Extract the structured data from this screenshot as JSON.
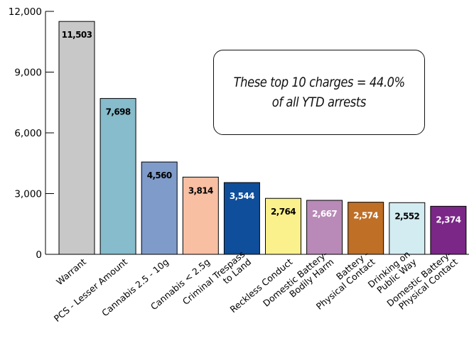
{
  "chart_data": {
    "type": "bar",
    "categories": [
      [
        "Warrant"
      ],
      [
        "PCS - Lesser Amount"
      ],
      [
        "Cannabis 2.5 - 10g"
      ],
      [
        "Cannabis < 2.5g"
      ],
      [
        "Criminal Trespass",
        "to Land"
      ],
      [
        "Reckless Conduct"
      ],
      [
        "Domestic Battery-",
        "Bodily Harm"
      ],
      [
        "Battery -",
        "Physical Contact"
      ],
      [
        "Drinking on",
        "Public Way"
      ],
      [
        "Domestic Battery-",
        "Physical Contact"
      ]
    ],
    "values": [
      11503,
      7698,
      4560,
      3814,
      3544,
      2764,
      2667,
      2574,
      2552,
      2374
    ],
    "value_labels": [
      "11,503",
      "7,698",
      "4,560",
      "3,814",
      "3,544",
      "2,764",
      "2,667",
      "2,574",
      "2,552",
      "2,374"
    ],
    "bar_colors": [
      "#c8c8c8",
      "#86bccb",
      "#7f9bc9",
      "#f8bfa3",
      "#0f4e9a",
      "#faf08c",
      "#b98ab8",
      "#bf6f26",
      "#d3ecf2",
      "#7a2787"
    ],
    "label_colors": [
      "#000000",
      "#000000",
      "#000000",
      "#000000",
      "#ffffff",
      "#000000",
      "#ffffff",
      "#ffffff",
      "#000000",
      "#ffffff"
    ],
    "ylim": [
      0,
      12000
    ],
    "yticks": [
      0,
      3000,
      6000,
      9000,
      12000
    ],
    "ytick_labels": [
      "0",
      "3,000",
      "6,000",
      "9,000",
      "12,000"
    ],
    "grid": false,
    "legend": "none"
  },
  "annotation": {
    "line1": "These top 10 charges = 44.0%",
    "line2": "of all YTD arrests"
  }
}
